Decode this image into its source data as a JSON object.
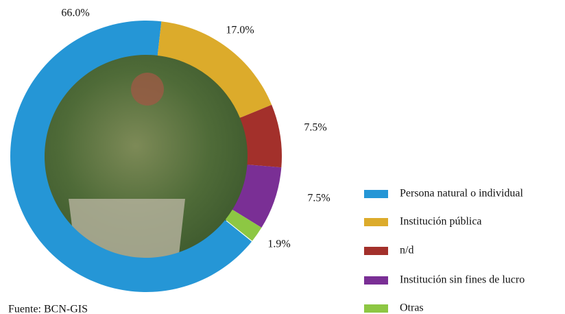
{
  "chart_data": {
    "type": "donut",
    "categories": [
      "Persona natural o individual",
      "Institución pública",
      "n/d",
      "Institución sin fines de lucro",
      "Otras"
    ],
    "values": [
      66.0,
      17.0,
      7.5,
      7.5,
      1.9
    ],
    "value_labels": [
      "66.0%",
      "17.0%",
      "7.5%",
      "7.5%",
      "1.9%"
    ],
    "colors": [
      "#2596d6",
      "#dcab2b",
      "#a3302b",
      "#7a2f95",
      "#8dc743"
    ],
    "legend": "right",
    "source": "Fuente: BCN-GIS"
  }
}
